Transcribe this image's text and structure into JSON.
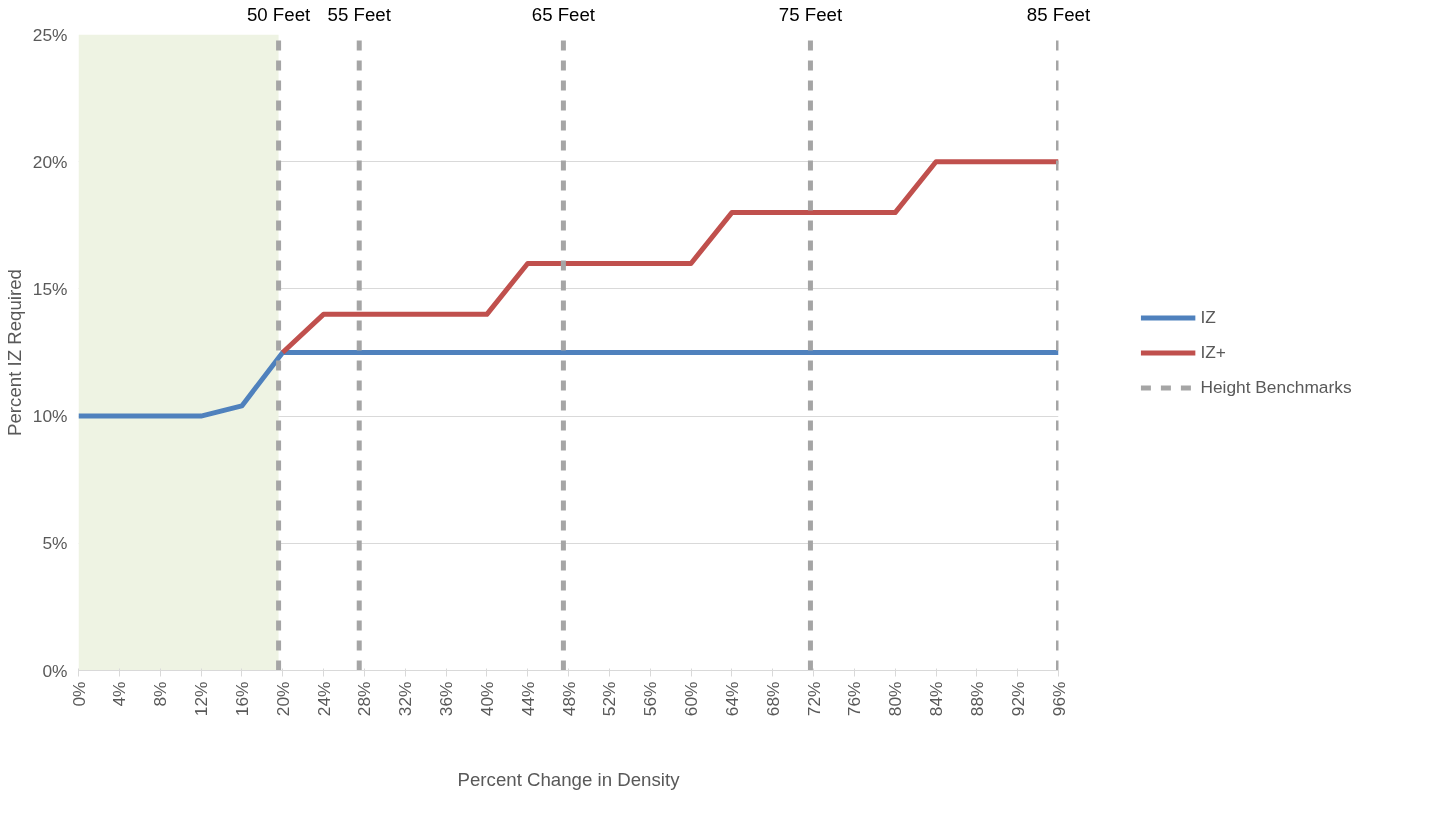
{
  "chart_data": {
    "type": "line",
    "xlabel": "Percent Change in Density",
    "ylabel": "Percent IZ Required",
    "x": [
      0,
      4,
      8,
      12,
      16,
      20,
      24,
      28,
      32,
      36,
      40,
      44,
      48,
      52,
      56,
      60,
      64,
      68,
      72,
      76,
      80,
      84,
      88,
      92,
      96
    ],
    "series": [
      {
        "name": "IZ",
        "color": "#4f81bd",
        "values": [
          10,
          10,
          10,
          10,
          10.4,
          12.5,
          12.5,
          12.5,
          12.5,
          12.5,
          12.5,
          12.5,
          12.5,
          12.5,
          12.5,
          12.5,
          12.5,
          12.5,
          12.5,
          12.5,
          12.5,
          12.5,
          12.5,
          12.5,
          12.5
        ]
      },
      {
        "name": "IZ+",
        "color": "#c0504d",
        "values": [
          null,
          null,
          null,
          null,
          null,
          12.5,
          14,
          14,
          14,
          14,
          14,
          16,
          16,
          16,
          16,
          16,
          18,
          18,
          18,
          18,
          18,
          20,
          20,
          20,
          20
        ]
      }
    ],
    "xlim": [
      0,
      96
    ],
    "xticks": [
      {
        "value": 0,
        "label": "0%"
      },
      {
        "value": 4,
        "label": "4%"
      },
      {
        "value": 8,
        "label": "8%"
      },
      {
        "value": 12,
        "label": "12%"
      },
      {
        "value": 16,
        "label": "16%"
      },
      {
        "value": 20,
        "label": "20%"
      },
      {
        "value": 24,
        "label": "24%"
      },
      {
        "value": 28,
        "label": "28%"
      },
      {
        "value": 32,
        "label": "32%"
      },
      {
        "value": 36,
        "label": "36%"
      },
      {
        "value": 40,
        "label": "40%"
      },
      {
        "value": 44,
        "label": "44%"
      },
      {
        "value": 48,
        "label": "48%"
      },
      {
        "value": 52,
        "label": "52%"
      },
      {
        "value": 56,
        "label": "56%"
      },
      {
        "value": 60,
        "label": "60%"
      },
      {
        "value": 64,
        "label": "64%"
      },
      {
        "value": 68,
        "label": "68%"
      },
      {
        "value": 72,
        "label": "72%"
      },
      {
        "value": 76,
        "label": "76%"
      },
      {
        "value": 80,
        "label": "80%"
      },
      {
        "value": 84,
        "label": "84%"
      },
      {
        "value": 88,
        "label": "88%"
      },
      {
        "value": 92,
        "label": "92%"
      },
      {
        "value": 96,
        "label": "96%"
      }
    ],
    "ylim": [
      0,
      25
    ],
    "yticks": [
      {
        "value": 0,
        "label": "0%"
      },
      {
        "value": 5,
        "label": "5%"
      },
      {
        "value": 10,
        "label": "10%"
      },
      {
        "value": 15,
        "label": "15%"
      },
      {
        "value": 20,
        "label": "20%"
      },
      {
        "value": 25,
        "label": "25%"
      }
    ],
    "ref_lines": [
      {
        "axis": "x",
        "value": 19.6,
        "label": "50 Feet",
        "color": "#a5a5a5",
        "line_style": "dashed"
      },
      {
        "axis": "x",
        "value": 27.5,
        "label": "55 Feet",
        "color": "#a5a5a5",
        "line_style": "dashed"
      },
      {
        "axis": "x",
        "value": 47.5,
        "label": "65 Feet",
        "color": "#a5a5a5",
        "line_style": "dashed"
      },
      {
        "axis": "x",
        "value": 71.7,
        "label": "75 Feet",
        "color": "#a5a5a5",
        "line_style": "dashed"
      },
      {
        "axis": "x",
        "value": 96,
        "label": "85 Feet",
        "color": "#a5a5a5",
        "line_style": "dashed"
      }
    ],
    "bands": [
      {
        "axis": "x",
        "from": 0,
        "to": 19.6,
        "color": "#eef3e3"
      }
    ],
    "annotations": [
      "Height Benchmarks"
    ],
    "grid": "y",
    "legend": "right",
    "line_style": "solid",
    "marker": "none"
  }
}
